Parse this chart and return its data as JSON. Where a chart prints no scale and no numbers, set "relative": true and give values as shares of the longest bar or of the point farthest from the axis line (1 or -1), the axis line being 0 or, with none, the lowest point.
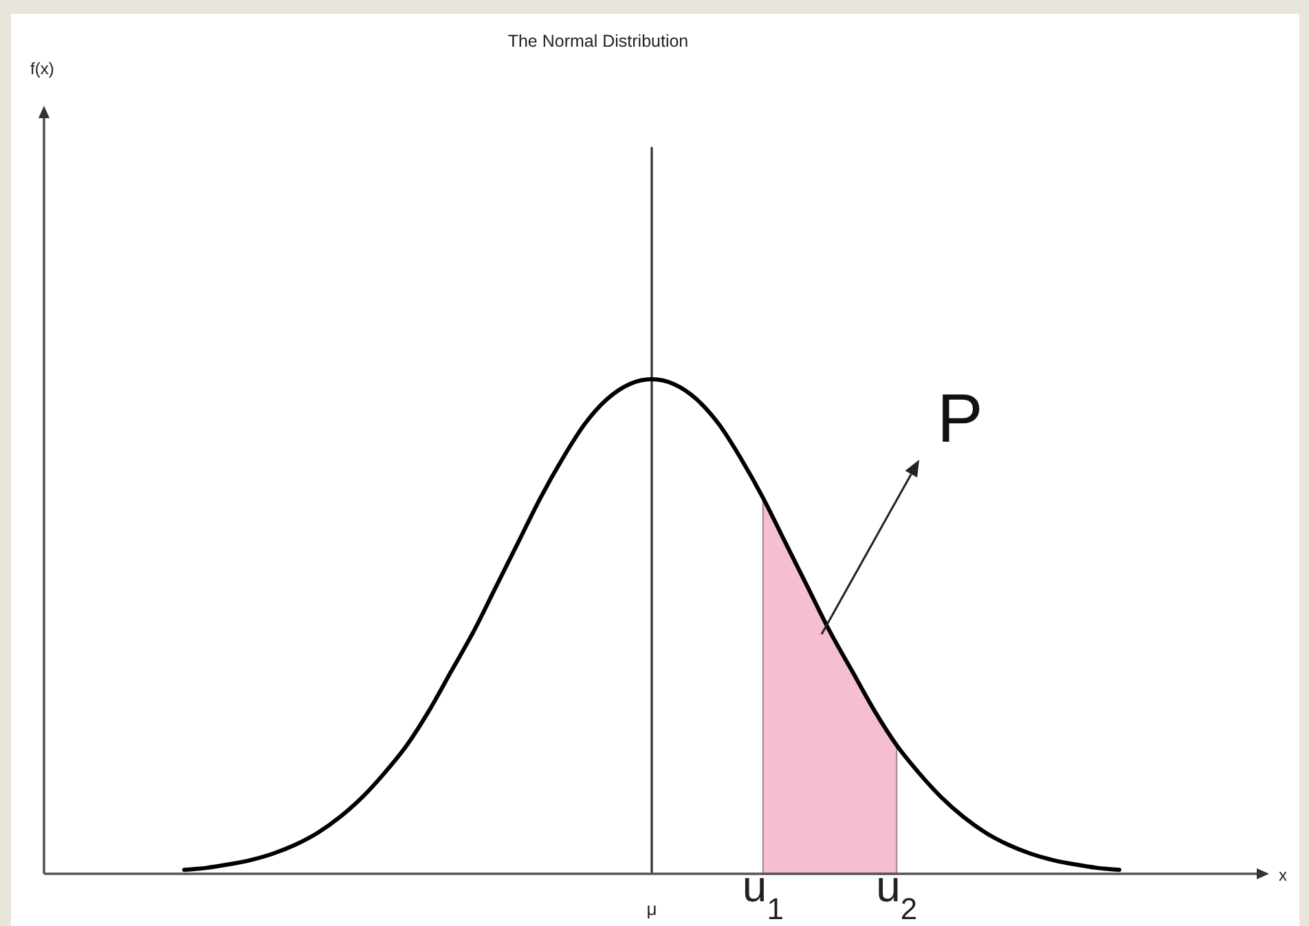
{
  "chart_data": {
    "type": "line",
    "title": "The Normal Distribution",
    "annotations": [
      "f(x)",
      "x"
    ],
    "relative": true,
    "categories": [
      null,
      null,
      null,
      null,
      null,
      null,
      null,
      null,
      null,
      null,
      null,
      null,
      null,
      null,
      null,
      null,
      null,
      null,
      null,
      null,
      null,
      "μ",
      null,
      null,
      null,
      null,
      "u$_{1}$",
      null,
      null,
      null,
      null,
      null,
      "u$_{2}$",
      null,
      null,
      null,
      null,
      null,
      null,
      null,
      null,
      null,
      null
    ],
    "series": [
      {
        "type": "area",
        "name": "P",
        "color": "#f5bfd0",
        "values": [
          null,
          null,
          null,
          null,
          null,
          null,
          null,
          null,
          null,
          null,
          null,
          null,
          null,
          null,
          null,
          null,
          null,
          null,
          null,
          null,
          null,
          null,
          null,
          null,
          null,
          null,
          0.76,
          0.67,
          0.58,
          0.49,
          0.41,
          0.33,
          0.26,
          null,
          null,
          null,
          null,
          null,
          null,
          null,
          null,
          null,
          null
        ]
      },
      {
        "color": "#000000",
        "values": [
          0.008,
          0.012,
          0.019,
          0.028,
          0.041,
          0.059,
          0.083,
          0.115,
          0.155,
          0.204,
          0.26,
          0.33,
          0.41,
          0.49,
          0.58,
          0.67,
          0.76,
          0.84,
          0.91,
          0.96,
          0.99,
          1,
          0.99,
          0.96,
          0.91,
          0.84,
          0.76,
          0.67,
          0.58,
          0.49,
          0.41,
          0.33,
          0.26,
          0.204,
          0.155,
          0.115,
          0.083,
          0.059,
          0.041,
          0.028,
          0.019,
          0.012,
          0.008
        ]
      }
    ],
    "ref_lines": [
      {
        "axis": "x",
        "value": "μ",
        "color": "#333333"
      }
    ]
  }
}
